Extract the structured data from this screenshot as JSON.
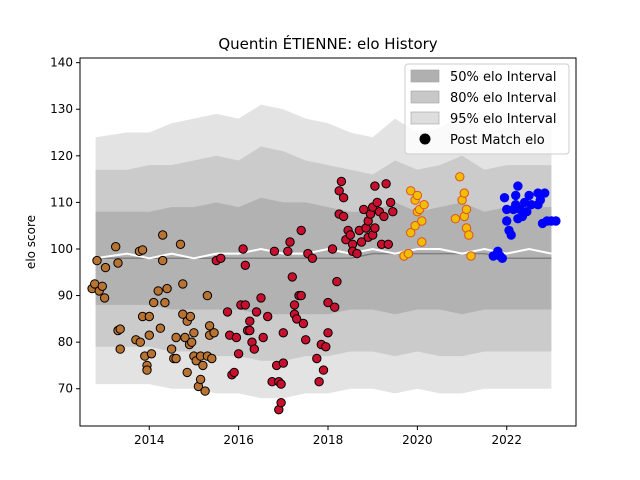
{
  "chart_data": {
    "type": "scatter",
    "title": "Quentin ÉTIENNE: elo History",
    "xlabel": "",
    "ylabel": "elo score",
    "xlim": [
      2012.45,
      2023.55
    ],
    "ylim": [
      62,
      141
    ],
    "xticks": [
      "2014",
      "2016",
      "2018",
      "2020",
      "2022"
    ],
    "xtick_values": [
      2014,
      2016,
      2018,
      2020,
      2022
    ],
    "yticks": [
      "70",
      "80",
      "90",
      "100",
      "110",
      "120",
      "130",
      "140"
    ],
    "ytick_values": [
      70,
      80,
      90,
      100,
      110,
      120,
      130,
      140
    ],
    "legend_position": "top-right",
    "legend": [
      {
        "label": "50% elo Interval",
        "kind": "band",
        "color": "#b0b0b0"
      },
      {
        "label": "80% elo Interval",
        "kind": "band",
        "color": "#c8c8c8"
      },
      {
        "label": "95% elo Interval",
        "kind": "band",
        "color": "#dedede"
      },
      {
        "label": "Post Match elo",
        "kind": "point",
        "color": "#000000"
      }
    ],
    "bands": {
      "x": [
        2012.8,
        2013.5,
        2014.0,
        2014.5,
        2015.0,
        2015.5,
        2016.0,
        2016.5,
        2017.0,
        2017.5,
        2018.0,
        2018.5,
        2019.0,
        2019.5,
        2020.0,
        2020.5,
        2021.0,
        2021.5,
        2022.0,
        2022.5,
        2023.0
      ],
      "p95_upper": [
        124,
        125,
        125,
        127,
        128,
        129,
        128,
        131,
        130,
        128,
        127,
        125,
        124,
        128,
        125,
        126,
        129,
        125,
        126,
        127,
        126
      ],
      "p80_upper": [
        117,
        117,
        118,
        118,
        119,
        120,
        119,
        122,
        121,
        119,
        118,
        117,
        116,
        119,
        117,
        118,
        120,
        117,
        118,
        118,
        118
      ],
      "p50_upper": [
        108,
        108,
        108,
        109,
        109,
        110,
        109,
        111,
        110,
        110,
        109,
        108,
        108,
        110,
        108,
        109,
        110,
        108,
        109,
        109,
        109
      ],
      "median": [
        98,
        98,
        98,
        98,
        98,
        98,
        98,
        98,
        98,
        98,
        98,
        98,
        99,
        99,
        99,
        99,
        99,
        99,
        98,
        98,
        98
      ],
      "p50_lower": [
        88,
        88,
        88,
        87,
        87,
        87,
        87,
        86,
        86,
        86,
        86,
        87,
        87,
        86,
        87,
        87,
        86,
        87,
        87,
        87,
        87
      ],
      "p80_lower": [
        79,
        79,
        79,
        78,
        78,
        77,
        77,
        76,
        76,
        77,
        77,
        78,
        78,
        77,
        78,
        77,
        77,
        78,
        78,
        78,
        78
      ],
      "p95_lower": [
        71,
        71,
        71,
        70,
        70,
        69,
        69,
        68,
        68,
        69,
        69,
        70,
        70,
        69,
        70,
        69,
        69,
        70,
        70,
        70,
        70
      ]
    },
    "white_line": {
      "x": [
        2012.8,
        2013.5,
        2014.0,
        2014.5,
        2015.0,
        2015.5,
        2016.0,
        2016.5,
        2017.0,
        2017.5,
        2018.0,
        2018.5,
        2019.0,
        2019.5,
        2020.0,
        2020.5,
        2021.0,
        2021.5,
        2022.0,
        2022.5,
        2023.0
      ],
      "y": [
        98,
        99,
        98,
        99,
        98,
        99,
        99,
        100,
        99,
        99,
        100,
        99,
        100,
        99,
        100,
        100,
        99,
        100,
        99,
        100,
        99
      ]
    },
    "series": [
      {
        "color": "#b87333",
        "edge": "#000000",
        "points": [
          [
            2012.72,
            91.5
          ],
          [
            2012.78,
            92.5
          ],
          [
            2012.83,
            97.5
          ],
          [
            2012.88,
            91
          ],
          [
            2012.95,
            92
          ],
          [
            2013.0,
            89.5
          ],
          [
            2013.02,
            96
          ],
          [
            2013.25,
            100.5
          ],
          [
            2013.3,
            97
          ],
          [
            2013.3,
            82.5
          ],
          [
            2013.35,
            82.8
          ],
          [
            2013.35,
            78.5
          ],
          [
            2013.78,
            99.5
          ],
          [
            2013.85,
            99.8
          ],
          [
            2013.7,
            80.5
          ],
          [
            2013.8,
            80
          ],
          [
            2013.85,
            85.5
          ],
          [
            2013.9,
            77
          ],
          [
            2013.95,
            75
          ],
          [
            2013.95,
            74
          ],
          [
            2014.0,
            81.5
          ],
          [
            2014.0,
            85.5
          ],
          [
            2014.05,
            77.5
          ],
          [
            2014.1,
            88.5
          ],
          [
            2014.2,
            91
          ],
          [
            2014.25,
            83
          ],
          [
            2014.3,
            97.5
          ],
          [
            2014.3,
            103
          ],
          [
            2014.35,
            88.5
          ],
          [
            2014.4,
            91.5
          ],
          [
            2014.5,
            78.5
          ],
          [
            2014.55,
            76.5
          ],
          [
            2014.6,
            81
          ],
          [
            2014.6,
            76.5
          ],
          [
            2014.7,
            101
          ],
          [
            2014.75,
            92.5
          ],
          [
            2014.75,
            86
          ],
          [
            2014.85,
            84.5
          ],
          [
            2014.8,
            81
          ],
          [
            2014.85,
            73.5
          ],
          [
            2014.9,
            79.5
          ],
          [
            2014.92,
            85.5
          ],
          [
            2014.95,
            80
          ],
          [
            2015.0,
            77
          ],
          [
            2015.0,
            82
          ],
          [
            2015.05,
            76
          ],
          [
            2015.1,
            70.5
          ],
          [
            2015.15,
            72
          ],
          [
            2015.15,
            77
          ],
          [
            2015.2,
            75
          ],
          [
            2015.25,
            69.5
          ],
          [
            2015.3,
            77
          ],
          [
            2015.35,
            81.5
          ],
          [
            2015.3,
            90
          ],
          [
            2015.35,
            83.5
          ],
          [
            2015.45,
            82
          ],
          [
            2015.4,
            76.5
          ]
        ]
      },
      {
        "color": "#c8102e",
        "edge": "#000000",
        "points": [
          [
            2015.5,
            97.5
          ],
          [
            2015.6,
            98
          ],
          [
            2015.75,
            86.5
          ],
          [
            2015.8,
            81.5
          ],
          [
            2015.85,
            73
          ],
          [
            2015.9,
            73.5
          ],
          [
            2015.95,
            81
          ],
          [
            2016.0,
            77.5
          ],
          [
            2016.05,
            88
          ],
          [
            2016.1,
            100
          ],
          [
            2016.15,
            96.5
          ],
          [
            2016.15,
            88
          ],
          [
            2016.2,
            82.5
          ],
          [
            2016.25,
            84.5
          ],
          [
            2016.25,
            82.5
          ],
          [
            2016.3,
            80
          ],
          [
            2016.35,
            78.5
          ],
          [
            2016.4,
            86.5
          ],
          [
            2016.5,
            89.5
          ],
          [
            2016.55,
            81
          ],
          [
            2016.65,
            85.5
          ],
          [
            2016.75,
            71.5
          ],
          [
            2016.8,
            99.5
          ],
          [
            2016.85,
            75
          ],
          [
            2016.9,
            71.5
          ],
          [
            2016.9,
            65.5
          ],
          [
            2016.95,
            67
          ],
          [
            2016.95,
            71
          ],
          [
            2017.0,
            82
          ],
          [
            2017.0,
            75.5
          ],
          [
            2017.1,
            99.5
          ],
          [
            2017.15,
            101.5
          ],
          [
            2017.2,
            94
          ],
          [
            2017.25,
            88
          ],
          [
            2017.25,
            86
          ],
          [
            2017.3,
            85
          ],
          [
            2017.35,
            90
          ],
          [
            2017.4,
            104
          ],
          [
            2017.4,
            90
          ],
          [
            2017.45,
            84
          ],
          [
            2017.5,
            80.5
          ],
          [
            2017.55,
            99
          ],
          [
            2017.65,
            98
          ],
          [
            2017.75,
            76.5
          ],
          [
            2017.8,
            71.5
          ],
          [
            2017.85,
            79.5
          ],
          [
            2017.9,
            74
          ],
          [
            2017.95,
            79
          ],
          [
            2018.0,
            82
          ],
          [
            2018.0,
            88.5
          ],
          [
            2018.1,
            100
          ],
          [
            2018.15,
            87.5
          ],
          [
            2018.2,
            93
          ],
          [
            2018.25,
            107.5
          ],
          [
            2018.25,
            112.5
          ],
          [
            2018.3,
            114.5
          ],
          [
            2018.35,
            111
          ],
          [
            2018.35,
            107
          ],
          [
            2018.4,
            102
          ],
          [
            2018.45,
            104
          ],
          [
            2018.5,
            103
          ],
          [
            2018.55,
            101
          ],
          [
            2018.55,
            99.5
          ],
          [
            2018.65,
            99
          ],
          [
            2018.7,
            104
          ],
          [
            2018.75,
            101.5
          ],
          [
            2018.8,
            108.5
          ],
          [
            2018.85,
            104.5
          ],
          [
            2018.9,
            102.5
          ],
          [
            2018.9,
            106
          ],
          [
            2018.95,
            107.5
          ],
          [
            2019.0,
            109
          ],
          [
            2019.0,
            103
          ],
          [
            2019.05,
            104.5
          ],
          [
            2019.05,
            113.5
          ],
          [
            2019.1,
            110
          ],
          [
            2019.15,
            108
          ],
          [
            2019.2,
            101
          ],
          [
            2019.25,
            107
          ],
          [
            2019.3,
            114
          ],
          [
            2019.35,
            101
          ],
          [
            2019.4,
            110
          ],
          [
            2019.45,
            108
          ]
        ]
      },
      {
        "color": "#f0c000",
        "edge": "#e05020",
        "points": [
          [
            2019.7,
            98.5
          ],
          [
            2019.8,
            99
          ],
          [
            2019.85,
            112.5
          ],
          [
            2019.85,
            103.5
          ],
          [
            2019.95,
            110.5
          ],
          [
            2019.95,
            105
          ],
          [
            2020.0,
            111.5
          ],
          [
            2020.0,
            108
          ],
          [
            2020.05,
            108.5
          ],
          [
            2020.1,
            106
          ],
          [
            2020.1,
            101.5
          ],
          [
            2020.15,
            109.5
          ],
          [
            2020.85,
            106.5
          ],
          [
            2020.95,
            115.5
          ],
          [
            2021.0,
            110.5
          ],
          [
            2021.05,
            112
          ],
          [
            2021.05,
            107
          ],
          [
            2021.1,
            104.5
          ],
          [
            2021.1,
            108.5
          ],
          [
            2021.15,
            103
          ],
          [
            2021.2,
            98.5
          ]
        ]
      },
      {
        "color": "#0000ff",
        "edge": "#0000ff",
        "points": [
          [
            2021.7,
            98.5
          ],
          [
            2021.8,
            99.5
          ],
          [
            2021.85,
            98.5
          ],
          [
            2021.9,
            98
          ],
          [
            2021.95,
            111
          ],
          [
            2022.0,
            108.5
          ],
          [
            2022.0,
            106
          ],
          [
            2022.05,
            104
          ],
          [
            2022.1,
            103
          ],
          [
            2022.15,
            108.5
          ],
          [
            2022.2,
            111.5
          ],
          [
            2022.2,
            109.5
          ],
          [
            2022.25,
            113.5
          ],
          [
            2022.25,
            106.5
          ],
          [
            2022.3,
            108.5
          ],
          [
            2022.35,
            107
          ],
          [
            2022.4,
            110
          ],
          [
            2022.45,
            108
          ],
          [
            2022.5,
            111.5
          ],
          [
            2022.55,
            109.5
          ],
          [
            2022.7,
            112
          ],
          [
            2022.7,
            109.5
          ],
          [
            2022.75,
            110.5
          ],
          [
            2022.8,
            105.5
          ],
          [
            2022.85,
            112
          ],
          [
            2022.9,
            106
          ],
          [
            2023.0,
            106
          ],
          [
            2023.1,
            106
          ]
        ]
      }
    ]
  }
}
